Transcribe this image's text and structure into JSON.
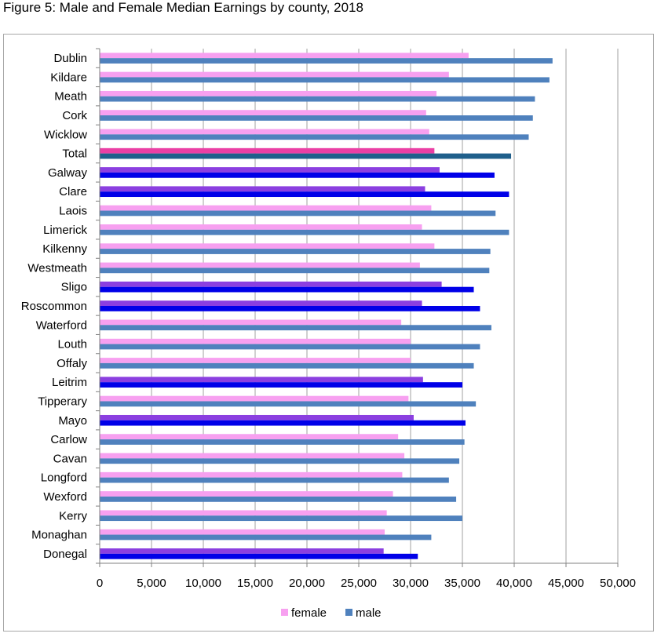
{
  "page_title": "Figure 5: Male and Female Median Earnings by county, 2018",
  "colors": {
    "female_default": "#f7a0f0",
    "male_default": "#4f81bd",
    "female_highlight": "#8b3fe0",
    "male_highlight": "#0000e8",
    "female_total": "#ea3fa4",
    "male_total": "#1f5f8b",
    "grid": "#a0a0a0"
  },
  "chart_data": {
    "type": "bar",
    "orientation": "horizontal",
    "title": "",
    "xlabel": "",
    "ylabel": "",
    "xlim": [
      0,
      50000
    ],
    "x_ticks": [
      "0",
      "5,000",
      "10,000",
      "15,000",
      "20,000",
      "25,000",
      "30,000",
      "35,000",
      "40,000",
      "45,000",
      "50,000"
    ],
    "x_tick_values": [
      0,
      5000,
      10000,
      15000,
      20000,
      25000,
      30000,
      35000,
      40000,
      45000,
      50000
    ],
    "grid": true,
    "legend_position": "bottom",
    "categories": [
      "Dublin",
      "Kildare",
      "Meath",
      "Cork",
      "Wicklow",
      "Total",
      "Galway",
      "Clare",
      "Laois",
      "Limerick",
      "Kilkenny",
      "Westmeath",
      "Sligo",
      "Roscommon",
      "Waterford",
      "Louth",
      "Offaly",
      "Leitrim",
      "Tipperary",
      "Mayo",
      "Carlow",
      "Cavan",
      "Longford",
      "Wexford",
      "Kerry",
      "Monaghan",
      "Donegal"
    ],
    "highlight": [
      "normal",
      "normal",
      "normal",
      "normal",
      "normal",
      "total",
      "dark",
      "dark",
      "normal",
      "normal",
      "normal",
      "normal",
      "dark",
      "dark",
      "normal",
      "normal",
      "normal",
      "dark",
      "normal",
      "dark",
      "normal",
      "normal",
      "normal",
      "normal",
      "normal",
      "normal",
      "dark"
    ],
    "series": [
      {
        "name": "female",
        "values": [
          35600,
          33700,
          32500,
          31500,
          31800,
          32300,
          32800,
          31400,
          32000,
          31100,
          32300,
          30900,
          33000,
          31100,
          29100,
          30000,
          30000,
          31200,
          29800,
          30300,
          28800,
          29400,
          29200,
          28300,
          27700,
          27500,
          27400
        ]
      },
      {
        "name": "male",
        "values": [
          43700,
          43400,
          42000,
          41800,
          41400,
          39700,
          38100,
          39500,
          38200,
          39500,
          37700,
          37600,
          36100,
          36700,
          37800,
          36700,
          36100,
          35000,
          36300,
          35300,
          35200,
          34700,
          33700,
          34400,
          35000,
          32000,
          30700
        ]
      }
    ]
  }
}
